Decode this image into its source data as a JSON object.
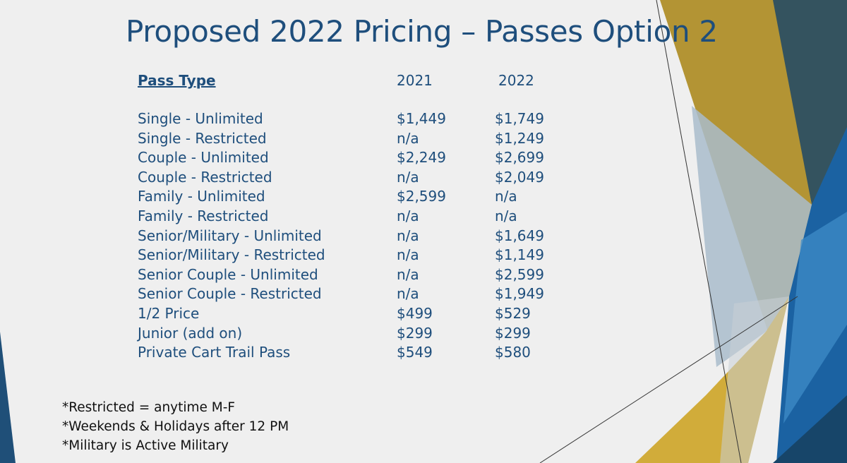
{
  "slide": {
    "title": "Proposed 2022 Pricing – Passes Option 2",
    "colors": {
      "background": "#efefef",
      "text_blue": "#1e4e7c",
      "accent_gold": "#c9a227",
      "accent_dark_teal": "#2f5060",
      "accent_blue": "#1f6aa5"
    }
  },
  "table": {
    "headers": {
      "pass_type": "Pass Type",
      "year_2021": "2021",
      "year_2022": "2022"
    },
    "rows": [
      {
        "type": "Single - Unlimited",
        "y2021": "$1,449",
        "y2022": "$1,749"
      },
      {
        "type": "Single - Restricted",
        "y2021": "n/a",
        "y2022": "$1,249"
      },
      {
        "type": "Couple - Unlimited",
        "y2021": "$2,249",
        "y2022": "$2,699"
      },
      {
        "type": "Couple - Restricted",
        "y2021": "n/a",
        "y2022": "$2,049"
      },
      {
        "type": "Family - Unlimited",
        "y2021": "$2,599",
        "y2022": "n/a"
      },
      {
        "type": "Family - Restricted",
        "y2021": "n/a",
        "y2022": "n/a"
      },
      {
        "type": "Senior/Military - Unlimited",
        "y2021": "n/a",
        "y2022": "$1,649"
      },
      {
        "type": "Senior/Military - Restricted",
        "y2021": "n/a",
        "y2022": "$1,149"
      },
      {
        "type": "Senior Couple - Unlimited",
        "y2021": "n/a",
        "y2022": "$2,599"
      },
      {
        "type": "Senior Couple - Restricted",
        "y2021": "n/a",
        "y2022": "$1,949"
      },
      {
        "type": "1/2 Price",
        "y2021": "$499",
        "y2022": "$529"
      },
      {
        "type": "Junior (add on)",
        "y2021": "$299",
        "y2022": "$299"
      },
      {
        "type": "Private Cart Trail Pass",
        "y2021": "$549",
        "y2022": "$580"
      }
    ]
  },
  "notes": [
    "*Restricted = anytime M-F",
    "*Weekends & Holidays after 12 PM",
    "*Military is Active Military"
  ]
}
